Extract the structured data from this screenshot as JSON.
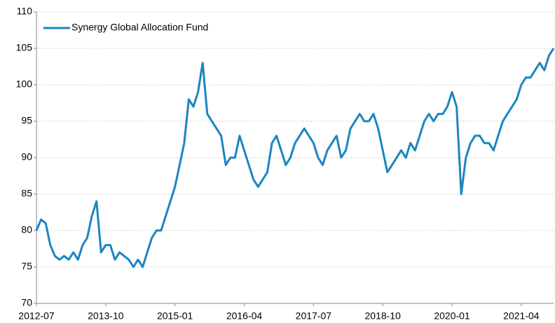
{
  "chart_data": {
    "type": "line",
    "x": [
      "2012-07",
      "2012-08",
      "2012-09",
      "2012-10",
      "2012-11",
      "2012-12",
      "2013-01",
      "2013-02",
      "2013-03",
      "2013-04",
      "2013-05",
      "2013-06",
      "2013-07",
      "2013-08",
      "2013-09",
      "2013-10",
      "2013-11",
      "2013-12",
      "2014-01",
      "2014-02",
      "2014-03",
      "2014-04",
      "2014-05",
      "2014-06",
      "2014-07",
      "2014-08",
      "2014-09",
      "2014-10",
      "2014-11",
      "2014-12",
      "2015-01",
      "2015-02",
      "2015-03",
      "2015-04",
      "2015-05",
      "2015-06",
      "2015-07",
      "2015-08",
      "2015-09",
      "2015-10",
      "2015-11",
      "2015-12",
      "2016-01",
      "2016-02",
      "2016-03",
      "2016-04",
      "2016-05",
      "2016-06",
      "2016-07",
      "2016-08",
      "2016-09",
      "2016-10",
      "2016-11",
      "2016-12",
      "2017-01",
      "2017-02",
      "2017-03",
      "2017-04",
      "2017-05",
      "2017-06",
      "2017-07",
      "2017-08",
      "2017-09",
      "2017-10",
      "2017-11",
      "2017-12",
      "2018-01",
      "2018-02",
      "2018-03",
      "2018-04",
      "2018-05",
      "2018-06",
      "2018-07",
      "2018-08",
      "2018-09",
      "2018-10",
      "2018-11",
      "2018-12",
      "2019-01",
      "2019-02",
      "2019-03",
      "2019-04",
      "2019-05",
      "2019-06",
      "2019-07",
      "2019-08",
      "2019-09",
      "2019-10",
      "2019-11",
      "2019-12",
      "2020-01",
      "2020-02",
      "2020-03",
      "2020-04",
      "2020-05",
      "2020-06",
      "2020-07",
      "2020-08",
      "2020-09",
      "2020-10",
      "2020-11",
      "2020-12",
      "2021-01",
      "2021-02",
      "2021-03",
      "2021-04",
      "2021-05",
      "2021-06",
      "2021-07",
      "2021-08",
      "2021-09",
      "2021-10",
      "2021-11"
    ],
    "series": [
      {
        "name": "Synergy Global Allocation Fund",
        "color": "#1a86c0",
        "values": [
          80,
          81.5,
          81,
          78,
          76.5,
          76,
          76.5,
          76,
          77,
          76,
          78,
          79,
          82,
          84,
          77,
          78,
          78,
          76,
          77,
          76.5,
          76,
          75,
          76,
          75,
          77,
          79,
          80,
          80,
          82,
          84,
          86,
          89,
          92,
          98,
          97,
          99,
          103,
          96,
          95,
          94,
          93,
          89,
          90,
          90,
          93,
          91,
          89,
          87,
          86,
          87,
          88,
          92,
          93,
          91,
          89,
          90,
          92,
          93,
          94,
          93,
          92,
          90,
          89,
          91,
          92,
          93,
          90,
          91,
          94,
          95,
          96,
          95,
          95,
          96,
          94,
          91,
          88,
          89,
          90,
          91,
          90,
          92,
          91,
          93,
          95,
          96,
          95,
          96,
          96,
          97,
          99,
          97,
          85,
          90,
          92,
          93,
          93,
          92,
          92,
          91,
          93,
          95,
          96,
          97,
          98,
          100,
          101,
          101,
          102,
          103,
          102,
          104,
          105
        ]
      }
    ],
    "xlim": [
      "2012-07",
      "2021-11"
    ],
    "xticks": [
      "2012-07",
      "2013-10",
      "2015-01",
      "2016-04",
      "2017-07",
      "2018-10",
      "2020-01",
      "2021-04"
    ],
    "ylim": [
      70,
      110
    ],
    "yticks": [
      70,
      75,
      80,
      85,
      90,
      95,
      100,
      105,
      110
    ],
    "grid": true,
    "legend": "top-left"
  }
}
